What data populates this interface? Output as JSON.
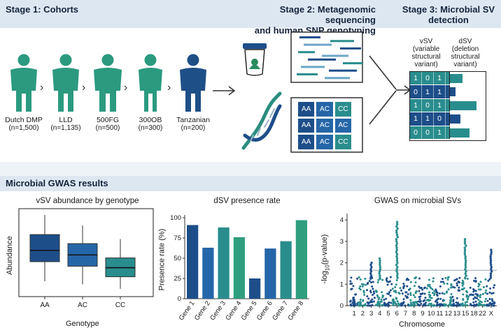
{
  "stages": {
    "stage1": "Stage 1: Cohorts",
    "stage2_line1": "Stage 2: Metagenomic sequencing",
    "stage2_line2": "and human SNP genotyping",
    "stage3_line1": "Stage 3: Microbial SV",
    "stage3_line2": "detection"
  },
  "cohorts": [
    {
      "name": "Dutch DMP",
      "n": "(n=1,500)"
    },
    {
      "name": "LLD",
      "n": "(n=1,135)"
    },
    {
      "name": "500FG",
      "n": "(n=500)"
    },
    {
      "name": "300OB",
      "n": "(n=300)"
    },
    {
      "name": "Tanzanian",
      "n": "(n=200)"
    }
  ],
  "genotype_grid": [
    [
      "AA",
      "AC",
      "CC"
    ],
    [
      "AA",
      "AC",
      "AC"
    ],
    [
      "AA",
      "AC",
      "CC"
    ]
  ],
  "vsv_label": [
    "vSV",
    "(variable",
    "structural",
    "variant)"
  ],
  "dsv_label": [
    "dSV",
    "(deletion",
    "structural",
    "variant)"
  ],
  "vsv_matrix": [
    [
      "1",
      "0",
      "1"
    ],
    [
      "0",
      "1",
      "1"
    ],
    [
      "1",
      "0",
      "1"
    ],
    [
      "1",
      "1",
      "0"
    ],
    [
      "0",
      "0",
      "1"
    ]
  ],
  "dsv_bars": [
    0.35,
    0.15,
    0.75,
    0.3,
    0.55
  ],
  "gwas_section": "Microbial GWAS results",
  "boxplot": {
    "title": "vSV abundance by genotype",
    "ylabel": "Abundance",
    "xlabel": "Genotype",
    "categories": [
      "AA",
      "AC",
      "CC"
    ]
  },
  "barchart": {
    "title": "dSV presence rate",
    "ylabel": "Presence rate (%)",
    "yticks": [
      "0",
      "25",
      "50",
      "75",
      "100"
    ]
  },
  "manhattan": {
    "title": "GWAS on microbial SVs",
    "ylabel": "-log10(p-value)",
    "xlabel": "Chromosome",
    "yticks": [
      "0",
      "1",
      "2",
      "3",
      "4"
    ],
    "xticks": [
      "1",
      "2",
      "3",
      "4",
      "5",
      "6",
      "7",
      "8",
      "9",
      "10",
      "11",
      "12",
      "13",
      "15",
      "18",
      "22",
      "X"
    ]
  },
  "chart_data": [
    {
      "type": "bar",
      "title": "dSV presence rate",
      "ylabel": "Presence rate (%)",
      "categories": [
        "Gene 1",
        "Gene 2",
        "Gene 3",
        "Gene 4",
        "Gene 5",
        "Gene 6",
        "Gene 7",
        "Gene 8"
      ],
      "values": [
        91,
        63,
        88,
        76,
        25,
        62,
        71,
        97
      ],
      "ylim": [
        0,
        100
      ]
    },
    {
      "type": "scatter",
      "title": "GWAS on microbial SVs",
      "xlabel": "Chromosome",
      "ylabel": "-log10(p-value)",
      "ylim": [
        0,
        4
      ],
      "threshold": 1.65,
      "peaks": [
        {
          "chrom": "3",
          "y": 2.05
        },
        {
          "chrom": "4",
          "y": 2.3
        },
        {
          "chrom": "6",
          "y": 4.0
        },
        {
          "chrom": "15",
          "y": 3.2
        },
        {
          "chrom": "X",
          "y": 2.7
        }
      ]
    },
    {
      "type": "box",
      "title": "vSV abundance by genotype",
      "categories": [
        "AA",
        "AC",
        "CC"
      ],
      "boxes": [
        {
          "min": 0.12,
          "q1": 0.38,
          "median": 0.53,
          "q3": 0.74,
          "max": 1.0
        },
        {
          "min": 0.08,
          "q1": 0.32,
          "median": 0.47,
          "q3": 0.62,
          "max": 0.86
        },
        {
          "min": 0.02,
          "q1": 0.18,
          "median": 0.3,
          "q3": 0.43,
          "max": 0.68
        }
      ]
    }
  ],
  "colors": {
    "navy": "#1d4e89",
    "blue": "#2566a8",
    "teal": "#2a8d8d",
    "green": "#2f9e7f",
    "person": "#2b9a7f",
    "person_dark": "#1e4f86"
  }
}
